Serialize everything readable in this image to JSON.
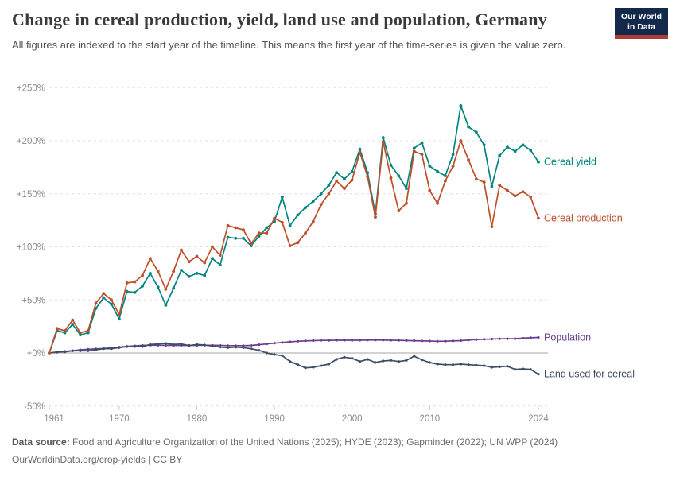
{
  "header": {
    "title": "Change in cereal production, yield, land use and population, Germany",
    "subtitle": "All figures are indexed to the start year of the timeline. This means the first year of the time-series is given the value zero.",
    "logo": {
      "line1": "Our World",
      "line2": "in Data",
      "bg_color": "#12294b",
      "accent_color": "#ae3c39"
    }
  },
  "footer": {
    "datasource_label": "Data source:",
    "datasource_text": " Food and Agriculture Organization of the United Nations (2025); HYDE (2023); Gapminder (2022); UN WPP (2024)",
    "link_line": "OurWorldinData.org/crop-yields | CC BY"
  },
  "colors": {
    "grid": "#e0e0e0",
    "zero_line": "#a5a5a5",
    "axis_text": "#8c8c8c",
    "tick_mark": "#c8c8c8"
  },
  "chart_data": {
    "type": "line",
    "title": "Change in cereal production, yield, land use and population, Germany",
    "start_year": 1961,
    "end_year": 2024,
    "x_tick_years": [
      1961,
      1970,
      1980,
      1990,
      2000,
      2010,
      2024
    ],
    "y_ticks": [
      {
        "value": -50,
        "label": "-50%"
      },
      {
        "value": 0,
        "label": "+0%"
      },
      {
        "value": 50,
        "label": "+50%"
      },
      {
        "value": 100,
        "label": "+100%"
      },
      {
        "value": 150,
        "label": "+150%"
      },
      {
        "value": 200,
        "label": "+200%"
      },
      {
        "value": 250,
        "label": "+250%"
      }
    ],
    "ylim": [
      -50,
      250
    ],
    "grid": "dashed-horizontal",
    "legend_position": "end-of-line-labels",
    "series": [
      {
        "name": "Population",
        "color": "#6d3e91",
        "values": [
          0,
          0.7,
          1.5,
          2.2,
          2.9,
          3.5,
          3.9,
          4.2,
          4.8,
          5.5,
          6.2,
          6.7,
          7.1,
          7.3,
          7.3,
          7.2,
          7.1,
          7.1,
          7.1,
          7.2,
          7.3,
          7.2,
          7.1,
          6.9,
          6.8,
          6.9,
          7.1,
          7.8,
          8.5,
          9.2,
          9.8,
          10.5,
          11.0,
          11.4,
          11.6,
          11.8,
          11.9,
          12.0,
          12.0,
          12.0,
          12.0,
          12.1,
          12.1,
          12.1,
          12.0,
          11.9,
          11.7,
          11.5,
          11.3,
          11.2,
          11.0,
          11.1,
          11.3,
          11.6,
          12.1,
          12.6,
          12.9,
          13.1,
          13.3,
          13.4,
          13.4,
          13.9,
          14.3,
          14.6
        ]
      },
      {
        "name": "Land used for cereal",
        "color": "#3c4e66",
        "values": [
          0,
          1,
          1,
          2,
          2,
          2,
          3,
          4,
          4,
          5,
          6,
          6,
          6,
          8,
          8.5,
          9,
          8,
          8.5,
          7,
          8,
          7.5,
          6.5,
          5.5,
          5,
          5.5,
          5,
          4,
          2.5,
          0,
          -1.5,
          -2.5,
          -8,
          -11,
          -14,
          -13.5,
          -12,
          -10.5,
          -6,
          -4,
          -5,
          -8,
          -6,
          -9,
          -7.5,
          -7,
          -8,
          -7,
          -3,
          -6.5,
          -9,
          -10.5,
          -11,
          -11,
          -10.5,
          -11,
          -11.5,
          -12,
          -13.5,
          -13,
          -12.5,
          -15.5,
          -15,
          -15.5,
          -20
        ]
      },
      {
        "name": "Cereal yield",
        "color": "#00847e",
        "values": [
          0,
          21,
          19,
          27,
          17,
          19,
          42,
          52,
          46,
          32,
          58,
          57,
          63,
          75,
          62,
          45,
          61,
          78,
          72,
          75,
          73,
          89,
          83,
          109,
          108,
          108,
          101,
          110,
          118,
          124,
          147,
          120,
          130,
          137,
          143,
          150,
          158,
          170,
          164,
          171,
          192,
          170,
          131,
          203,
          177,
          167,
          155,
          193,
          198,
          176,
          171,
          167,
          187,
          233,
          213,
          208,
          196,
          157,
          186,
          194,
          190,
          196,
          191,
          180
        ]
      },
      {
        "name": "Cereal production",
        "color": "#be4e29",
        "values": [
          0,
          23,
          21,
          31,
          19,
          21,
          47,
          56,
          50,
          36,
          66,
          67,
          73,
          89,
          77,
          60,
          77,
          97,
          86,
          91,
          85,
          100,
          92,
          120,
          118,
          116,
          103,
          113,
          113,
          127,
          123,
          101,
          104,
          113,
          124,
          140,
          150,
          162,
          155,
          163,
          189,
          166,
          128,
          199,
          165,
          134,
          141,
          190,
          187,
          153,
          141,
          162,
          176,
          200,
          182,
          164,
          161,
          119,
          158,
          153,
          148,
          152,
          147,
          127
        ]
      }
    ]
  }
}
